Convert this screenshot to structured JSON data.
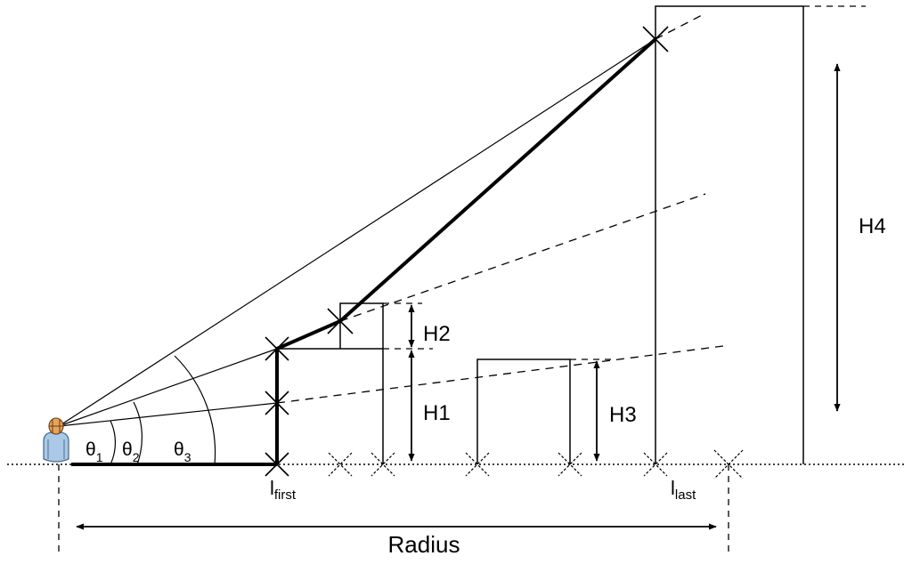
{
  "labels": {
    "theta1_base": "θ",
    "theta1_sub": "1",
    "theta2_base": "θ",
    "theta2_sub": "2",
    "theta3_base": "θ",
    "theta3_sub": "3",
    "h1": "H1",
    "h2": "H2",
    "h3": "H3",
    "h4": "H4",
    "l_first_base": "l",
    "l_first_sub": "first",
    "l_last_base": "l",
    "l_last_sub": "last",
    "radius": "Radius"
  }
}
